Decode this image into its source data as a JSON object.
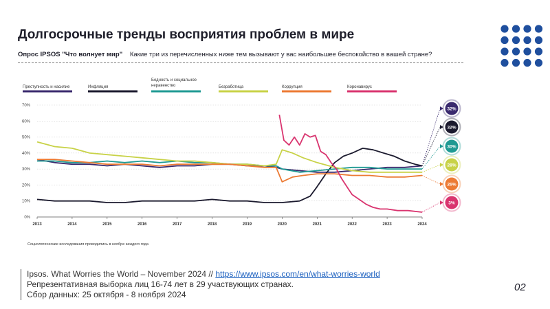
{
  "header": {
    "title": "Долгосрочные тренды восприятия проблем в мире",
    "survey_label": "Опрос IPSOS \"Что волнует мир\"",
    "question": "Какие три из перечисленных ниже тем вызывают у вас наибольшее беспокойство в вашей стране?"
  },
  "footnote": "Социологические исследования проводились в ноябре каждого года",
  "source": {
    "line1_prefix": "Ipsos. What Worries the World – November 2024 // ",
    "line1_link": "https://www.ipsos.com/en/what-worries-world",
    "line2": "Репрезентативная выборка лиц 16-74 лет в 29 участвующих странах.",
    "line3": "Сбор данных: 25 октября - 8 ноября 2024"
  },
  "page_number": "02",
  "chart_data": {
    "type": "line",
    "x_ticks": [
      "2013",
      "2014",
      "2015",
      "2016",
      "2017",
      "2018",
      "2019",
      "2020",
      "2021",
      "2022",
      "2023",
      "2024"
    ],
    "y_ticks": [
      "0%",
      "10%",
      "20%",
      "30%",
      "40%",
      "50%",
      "60%",
      "70%"
    ],
    "xlim": [
      2013,
      2024
    ],
    "ylim": [
      0,
      70
    ],
    "grid": "horizontal-dotted",
    "legend_position": "top",
    "series": [
      {
        "name": "Преступность и насилие",
        "color": "#3a2a6e",
        "end_label": "32%",
        "points": [
          [
            2013.0,
            36
          ],
          [
            2013.5,
            34
          ],
          [
            2014.0,
            33
          ],
          [
            2014.5,
            33
          ],
          [
            2015.0,
            32
          ],
          [
            2015.5,
            33
          ],
          [
            2016.0,
            32
          ],
          [
            2016.5,
            31
          ],
          [
            2017.0,
            32
          ],
          [
            2017.5,
            32
          ],
          [
            2018.0,
            33
          ],
          [
            2018.5,
            33
          ],
          [
            2019.0,
            32
          ],
          [
            2019.5,
            32
          ],
          [
            2019.83,
            31
          ],
          [
            2020.0,
            30
          ],
          [
            2020.5,
            29
          ],
          [
            2021.0,
            28
          ],
          [
            2021.5,
            28
          ],
          [
            2022.0,
            29
          ],
          [
            2022.5,
            30
          ],
          [
            2023.0,
            31
          ],
          [
            2023.5,
            31
          ],
          [
            2024.0,
            32
          ]
        ]
      },
      {
        "name": "Инфляция",
        "color": "#1b1a2e",
        "end_label": "32%",
        "points": [
          [
            2013.0,
            11
          ],
          [
            2013.5,
            10
          ],
          [
            2014.0,
            10
          ],
          [
            2014.5,
            10
          ],
          [
            2015.0,
            9
          ],
          [
            2015.5,
            9
          ],
          [
            2016.0,
            10
          ],
          [
            2016.5,
            10
          ],
          [
            2017.0,
            10
          ],
          [
            2017.5,
            10
          ],
          [
            2018.0,
            11
          ],
          [
            2018.5,
            10
          ],
          [
            2019.0,
            10
          ],
          [
            2019.5,
            9
          ],
          [
            2020.0,
            9
          ],
          [
            2020.5,
            10
          ],
          [
            2020.8,
            13
          ],
          [
            2021.0,
            19
          ],
          [
            2021.25,
            27
          ],
          [
            2021.5,
            34
          ],
          [
            2021.75,
            38
          ],
          [
            2022.0,
            40
          ],
          [
            2022.3,
            43
          ],
          [
            2022.6,
            42
          ],
          [
            2022.9,
            40
          ],
          [
            2023.2,
            38
          ],
          [
            2023.5,
            35
          ],
          [
            2023.8,
            33
          ],
          [
            2024.0,
            32
          ]
        ]
      },
      {
        "name": "Бедность и социальное неравенство",
        "color": "#1f9a93",
        "end_label": "30%",
        "points": [
          [
            2013.0,
            35
          ],
          [
            2013.5,
            35
          ],
          [
            2014.0,
            34
          ],
          [
            2014.5,
            34
          ],
          [
            2015.0,
            35
          ],
          [
            2015.5,
            34
          ],
          [
            2016.0,
            35
          ],
          [
            2016.5,
            34
          ],
          [
            2017.0,
            35
          ],
          [
            2017.5,
            34
          ],
          [
            2018.0,
            34
          ],
          [
            2018.5,
            33
          ],
          [
            2019.0,
            33
          ],
          [
            2019.5,
            32
          ],
          [
            2019.83,
            32
          ],
          [
            2020.0,
            30
          ],
          [
            2020.5,
            28
          ],
          [
            2021.0,
            29
          ],
          [
            2021.5,
            30
          ],
          [
            2022.0,
            31
          ],
          [
            2022.5,
            31
          ],
          [
            2023.0,
            30
          ],
          [
            2023.5,
            30
          ],
          [
            2024.0,
            30
          ]
        ]
      },
      {
        "name": "Безработица",
        "color": "#c8d247",
        "end_label": "28%",
        "points": [
          [
            2013.0,
            47
          ],
          [
            2013.5,
            44
          ],
          [
            2014.0,
            43
          ],
          [
            2014.5,
            40
          ],
          [
            2015.0,
            39
          ],
          [
            2015.5,
            38
          ],
          [
            2016.0,
            37
          ],
          [
            2016.5,
            36
          ],
          [
            2017.0,
            35
          ],
          [
            2017.5,
            35
          ],
          [
            2018.0,
            34
          ],
          [
            2018.5,
            33
          ],
          [
            2019.0,
            33
          ],
          [
            2019.5,
            32
          ],
          [
            2019.83,
            33
          ],
          [
            2020.0,
            42
          ],
          [
            2020.3,
            40
          ],
          [
            2020.6,
            37
          ],
          [
            2021.0,
            34
          ],
          [
            2021.5,
            31
          ],
          [
            2022.0,
            29
          ],
          [
            2022.5,
            28
          ],
          [
            2023.0,
            28
          ],
          [
            2023.5,
            28
          ],
          [
            2024.0,
            28
          ]
        ]
      },
      {
        "name": "Коррупция",
        "color": "#ec7a33",
        "end_label": "26%",
        "points": [
          [
            2013.0,
            36
          ],
          [
            2013.5,
            36
          ],
          [
            2014.0,
            35
          ],
          [
            2014.5,
            34
          ],
          [
            2015.0,
            33
          ],
          [
            2015.5,
            33
          ],
          [
            2016.0,
            33
          ],
          [
            2016.5,
            32
          ],
          [
            2017.0,
            33
          ],
          [
            2017.5,
            33
          ],
          [
            2018.0,
            33
          ],
          [
            2018.5,
            33
          ],
          [
            2019.0,
            32
          ],
          [
            2019.5,
            31
          ],
          [
            2019.83,
            31
          ],
          [
            2020.0,
            22
          ],
          [
            2020.3,
            25
          ],
          [
            2020.6,
            26
          ],
          [
            2021.0,
            27
          ],
          [
            2021.5,
            27
          ],
          [
            2022.0,
            26
          ],
          [
            2022.5,
            26
          ],
          [
            2023.0,
            25
          ],
          [
            2023.5,
            25
          ],
          [
            2024.0,
            26
          ]
        ]
      },
      {
        "name": "Коронавирус",
        "color": "#d9346f",
        "end_label": "3%",
        "points": [
          [
            2019.92,
            64
          ],
          [
            2020.05,
            48
          ],
          [
            2020.2,
            45
          ],
          [
            2020.35,
            50
          ],
          [
            2020.5,
            45
          ],
          [
            2020.65,
            52
          ],
          [
            2020.8,
            50
          ],
          [
            2020.95,
            51
          ],
          [
            2021.1,
            41
          ],
          [
            2021.25,
            39
          ],
          [
            2021.4,
            34
          ],
          [
            2021.55,
            30
          ],
          [
            2021.7,
            24
          ],
          [
            2021.85,
            19
          ],
          [
            2022.0,
            14
          ],
          [
            2022.2,
            11
          ],
          [
            2022.4,
            8
          ],
          [
            2022.6,
            6
          ],
          [
            2022.8,
            5
          ],
          [
            2023.0,
            5
          ],
          [
            2023.3,
            4
          ],
          [
            2023.6,
            4
          ],
          [
            2024.0,
            3
          ]
        ]
      }
    ]
  }
}
